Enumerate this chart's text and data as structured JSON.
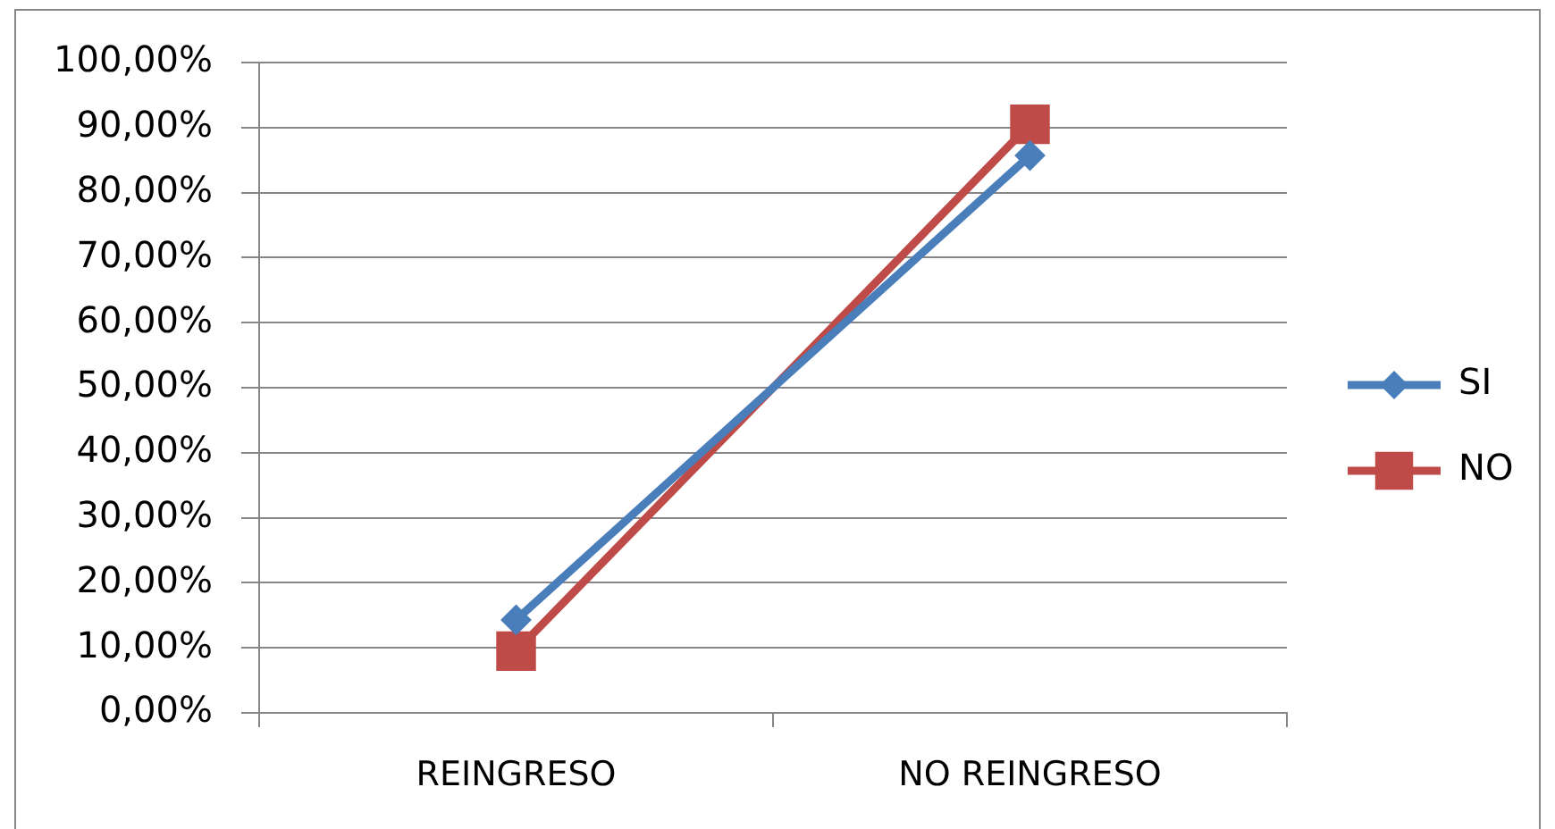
{
  "chart_data": {
    "type": "line",
    "categories": [
      "REINGRESO",
      "NO REINGRESO"
    ],
    "series": [
      {
        "name": "SI",
        "color": "#4a7ebb",
        "values": [
          14.3,
          85.7
        ],
        "marker": "diamond"
      },
      {
        "name": "NO",
        "color": "#be4b48",
        "values": [
          9.5,
          90.5
        ],
        "marker": "square"
      }
    ],
    "ylim": [
      0,
      100
    ],
    "yticks": [
      {
        "value": 0,
        "label": "0,00%"
      },
      {
        "value": 10,
        "label": "10,00%"
      },
      {
        "value": 20,
        "label": "20,00%"
      },
      {
        "value": 30,
        "label": "30,00%"
      },
      {
        "value": 40,
        "label": "40,00%"
      },
      {
        "value": 50,
        "label": "50,00%"
      },
      {
        "value": 60,
        "label": "60,00%"
      },
      {
        "value": 70,
        "label": "70,00%"
      },
      {
        "value": 80,
        "label": "80,00%"
      },
      {
        "value": 90,
        "label": "90,00%"
      },
      {
        "value": 100,
        "label": "100,00%"
      }
    ],
    "grid": "y",
    "legend": "right",
    "line_style": "solid"
  }
}
